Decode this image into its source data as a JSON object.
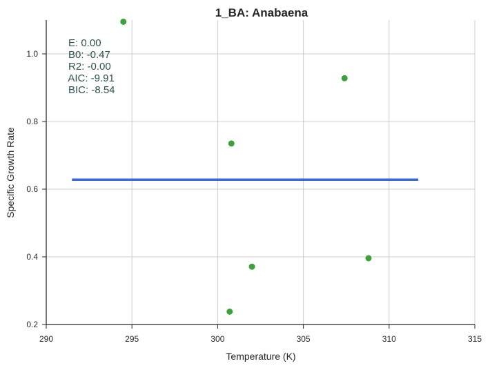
{
  "chart_data": {
    "type": "scatter",
    "title": "1_BA: Anabaena",
    "xlabel": "Temperature (K)",
    "ylabel": "Specific Growth Rate",
    "xlim": [
      290,
      315
    ],
    "ylim": [
      0.2,
      1.1
    ],
    "xticks": [
      290,
      295,
      300,
      305,
      310,
      315
    ],
    "yticks": [
      0.2,
      0.4,
      0.6,
      0.8,
      1.0
    ],
    "xtick_labels": [
      "290",
      "295",
      "300",
      "305",
      "310",
      "315"
    ],
    "ytick_labels": [
      "0.2",
      "0.4",
      "0.6",
      "0.8",
      "1.0"
    ],
    "grid": true,
    "points": [
      {
        "x": 294.5,
        "y": 1.095
      },
      {
        "x": 307.4,
        "y": 0.928
      },
      {
        "x": 300.8,
        "y": 0.735
      },
      {
        "x": 302.0,
        "y": 0.371
      },
      {
        "x": 308.8,
        "y": 0.396
      },
      {
        "x": 300.7,
        "y": 0.238
      }
    ],
    "fit_line": {
      "x": [
        291.5,
        311.7
      ],
      "y": [
        0.628,
        0.628
      ]
    },
    "point_color": "#3f9f3f",
    "line_color": "#4169c8",
    "annotation_lines": [
      "E:  0.00",
      "B0:  -0.47",
      "R2:  -0.00",
      " AIC: -9.91",
      "BIC: -8.54"
    ]
  }
}
